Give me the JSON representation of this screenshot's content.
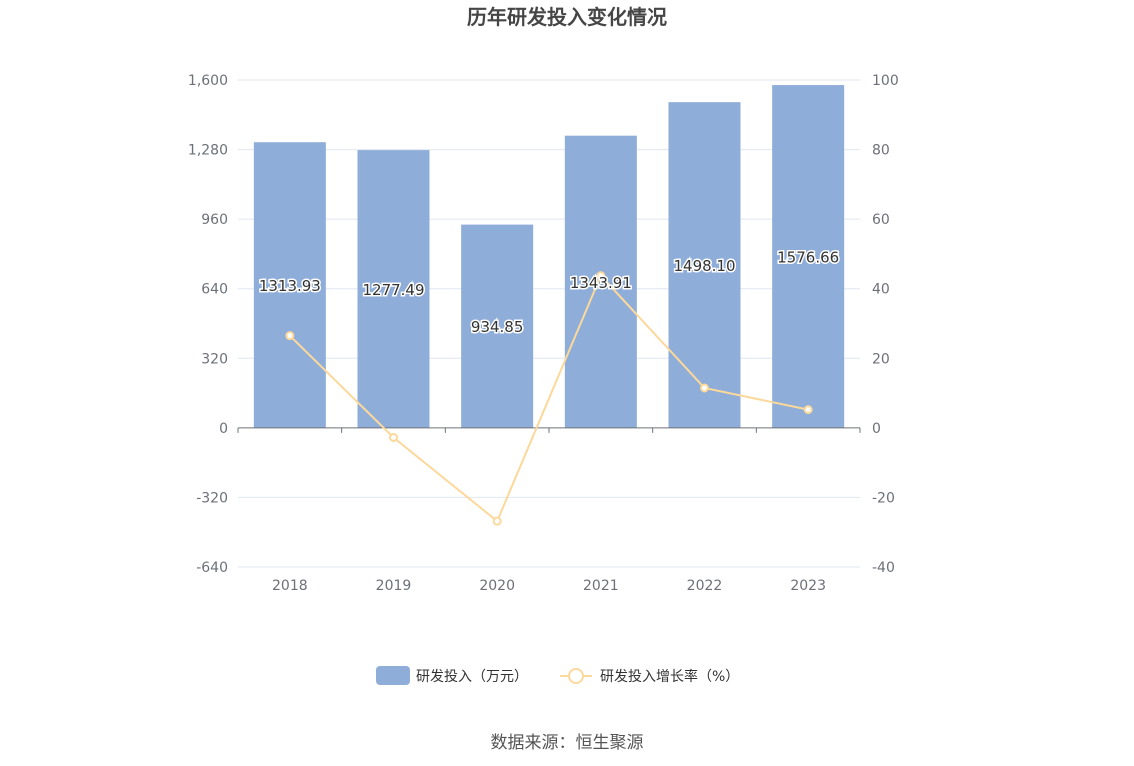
{
  "chart_data": {
    "type": "bar",
    "title": "历年研发投入变化情况",
    "categories": [
      "2018",
      "2019",
      "2020",
      "2021",
      "2022",
      "2023"
    ],
    "series": [
      {
        "name": "研发投入（万元）",
        "type": "bar",
        "axis": "left",
        "values": [
          1313.93,
          1277.49,
          934.85,
          1343.91,
          1498.1,
          1576.66
        ],
        "labels": [
          "1313.93",
          "1277.49",
          "934.85",
          "1343.91",
          "1498.10",
          "1576.66"
        ],
        "color": "#8eadd9"
      },
      {
        "name": "研发投入增长率（%）",
        "type": "line",
        "axis": "right",
        "values": [
          26.5,
          -2.77,
          -26.82,
          43.75,
          11.47,
          5.24
        ],
        "color": "#fcd89a"
      }
    ],
    "y_left": {
      "min": -640,
      "max": 1600,
      "ticks": [
        1600,
        1280,
        960,
        640,
        320,
        0,
        -320,
        -640
      ],
      "tick_labels": [
        "1,600",
        "1,280",
        "960",
        "640",
        "320",
        "0",
        "-320",
        "-640"
      ]
    },
    "y_right": {
      "min": -40,
      "max": 100,
      "ticks": [
        100,
        80,
        60,
        40,
        20,
        0,
        -20,
        -40
      ],
      "tick_labels": [
        "100",
        "80",
        "60",
        "40",
        "20",
        "0",
        "-20",
        "-40"
      ]
    },
    "grid": true,
    "legend_position": "bottom-center",
    "source": "数据来源：恒生聚源"
  }
}
